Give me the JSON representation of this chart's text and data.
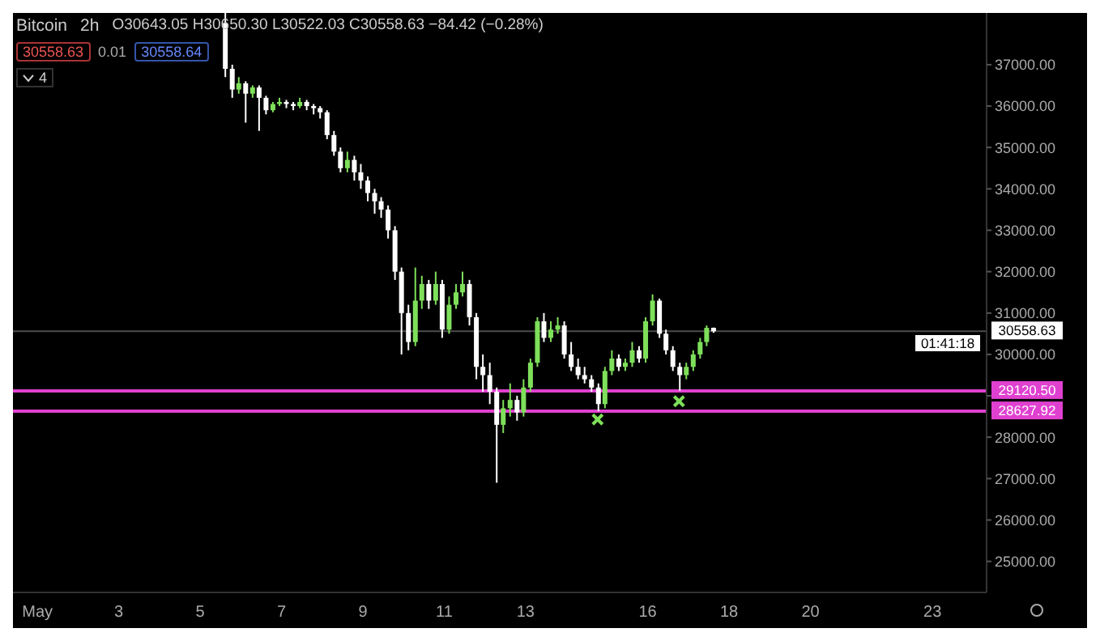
{
  "chart_data": {
    "type": "candlestick",
    "title": "Bitcoin",
    "annotations": [
      "2h",
      "O30643.05 H30650.30 L30522.03 C30558.63 −84.42 (−0.28%)",
      "30558.63",
      "0.01",
      "30558.64",
      "4",
      "01:41:18"
    ],
    "x": [
      5.6,
      5.77,
      5.93,
      6.1,
      6.27,
      6.43,
      6.6,
      6.77,
      6.93,
      7.1,
      7.27,
      7.43,
      7.6,
      7.77,
      7.93,
      8.1,
      8.27,
      8.43,
      8.6,
      8.77,
      8.93,
      9.1,
      9.27,
      9.43,
      9.6,
      9.77,
      9.93,
      10.1,
      10.27,
      10.43,
      10.6,
      10.77,
      10.93,
      11.1,
      11.27,
      11.43,
      11.6,
      11.77,
      11.93,
      12.1,
      12.27,
      12.43,
      12.6,
      12.77,
      12.93,
      13.1,
      13.27,
      13.43,
      13.6,
      13.77,
      13.93,
      14.1,
      14.27,
      14.43,
      14.6,
      14.77,
      14.93,
      15.1,
      15.27,
      15.43,
      15.6,
      15.77,
      15.93,
      16.1,
      16.27,
      16.43,
      16.6,
      16.77,
      16.93,
      17.1,
      17.27,
      17.43,
      17.6
    ],
    "ohlc": [
      [
        38000,
        38250,
        36700,
        36900
      ],
      [
        36900,
        37000,
        36200,
        36400
      ],
      [
        36400,
        36700,
        36300,
        36550
      ],
      [
        36550,
        36600,
        35600,
        36300
      ],
      [
        36300,
        36500,
        36200,
        36450
      ],
      [
        36450,
        36500,
        35400,
        36200
      ],
      [
        36200,
        36250,
        35800,
        35900
      ],
      [
        35900,
        36100,
        35850,
        36050
      ],
      [
        36050,
        36200,
        36000,
        36100
      ],
      [
        36100,
        36150,
        35950,
        36050
      ],
      [
        36050,
        36100,
        35900,
        36000
      ],
      [
        36000,
        36200,
        35950,
        36100
      ],
      [
        36100,
        36150,
        35900,
        36000
      ],
      [
        36000,
        36050,
        35800,
        35950
      ],
      [
        35950,
        36000,
        35700,
        35850
      ],
      [
        35850,
        35900,
        35200,
        35300
      ],
      [
        35300,
        35400,
        34800,
        34900
      ],
      [
        34900,
        35000,
        34400,
        34500
      ],
      [
        34500,
        34900,
        34400,
        34700
      ],
      [
        34700,
        34800,
        34200,
        34400
      ],
      [
        34400,
        34600,
        34000,
        34200
      ],
      [
        34200,
        34300,
        33700,
        33900
      ],
      [
        33900,
        34000,
        33400,
        33700
      ],
      [
        33700,
        33800,
        33300,
        33500
      ],
      [
        33500,
        33600,
        32800,
        33000
      ],
      [
        33000,
        33100,
        31800,
        32000
      ],
      [
        32000,
        32100,
        30000,
        31000
      ],
      [
        31000,
        31200,
        30100,
        30300
      ],
      [
        30300,
        32100,
        30200,
        31300
      ],
      [
        31300,
        31900,
        31100,
        31700
      ],
      [
        31700,
        31800,
        31100,
        31300
      ],
      [
        31300,
        32000,
        31200,
        31700
      ],
      [
        31700,
        31800,
        30400,
        30600
      ],
      [
        30600,
        31400,
        30500,
        31200
      ],
      [
        31200,
        31700,
        31100,
        31500
      ],
      [
        31500,
        32000,
        31400,
        31700
      ],
      [
        31700,
        31800,
        30700,
        30900
      ],
      [
        30900,
        31000,
        29400,
        29700
      ],
      [
        29700,
        30000,
        29100,
        29500
      ],
      [
        29500,
        29800,
        28800,
        29100
      ],
      [
        29100,
        29200,
        26900,
        28300
      ],
      [
        28300,
        28900,
        28100,
        28700
      ],
      [
        28700,
        29300,
        28500,
        28900
      ],
      [
        28900,
        29000,
        28400,
        28600
      ],
      [
        28600,
        29400,
        28500,
        29200
      ],
      [
        29200,
        29900,
        29100,
        29800
      ],
      [
        29800,
        30900,
        29700,
        30800
      ],
      [
        30800,
        31000,
        30300,
        30400
      ],
      [
        30400,
        30800,
        30300,
        30600
      ],
      [
        30600,
        30900,
        30500,
        30700
      ],
      [
        30700,
        30800,
        29900,
        30000
      ],
      [
        30000,
        30300,
        29600,
        29700
      ],
      [
        29700,
        29900,
        29400,
        29500
      ],
      [
        29500,
        29700,
        29300,
        29400
      ],
      [
        29400,
        29500,
        29100,
        29200
      ],
      [
        29200,
        29300,
        28627.92,
        28800
      ],
      [
        28800,
        29700,
        28700,
        29600
      ],
      [
        29600,
        30100,
        29500,
        29900
      ],
      [
        29900,
        30000,
        29600,
        29700
      ],
      [
        29700,
        29900,
        29600,
        29800
      ],
      [
        29800,
        30300,
        29700,
        30100
      ],
      [
        30100,
        30200,
        29800,
        29900
      ],
      [
        29900,
        30900,
        29800,
        30800
      ],
      [
        30800,
        31450,
        30700,
        31300
      ],
      [
        31300,
        31350,
        30400,
        30500
      ],
      [
        30500,
        30600,
        30000,
        30100
      ],
      [
        30100,
        30200,
        29600,
        29700
      ],
      [
        29700,
        29800,
        29120.5,
        29500
      ],
      [
        29500,
        29800,
        29400,
        29700
      ],
      [
        29700,
        30100,
        29600,
        30000
      ],
      [
        30000,
        30400,
        29900,
        30300
      ],
      [
        30300,
        30700,
        30200,
        30643.05
      ],
      [
        30643.05,
        30650.3,
        30522.03,
        30558.63
      ]
    ],
    "colors": [
      "#ffffff",
      "#ffffff",
      "#7ee05a",
      "#ffffff",
      "#7ee05a",
      "#ffffff",
      "#ffffff",
      "#7ee05a",
      "#7ee05a",
      "#ffffff",
      "#ffffff",
      "#7ee05a",
      "#ffffff",
      "#ffffff",
      "#ffffff",
      "#ffffff",
      "#ffffff",
      "#ffffff",
      "#7ee05a",
      "#ffffff",
      "#ffffff",
      "#ffffff",
      "#ffffff",
      "#ffffff",
      "#ffffff",
      "#ffffff",
      "#ffffff",
      "#ffffff",
      "#7ee05a",
      "#7ee05a",
      "#ffffff",
      "#7ee05a",
      "#ffffff",
      "#7ee05a",
      "#7ee05a",
      "#7ee05a",
      "#ffffff",
      "#ffffff",
      "#ffffff",
      "#ffffff",
      "#ffffff",
      "#7ee05a",
      "#7ee05a",
      "#ffffff",
      "#7ee05a",
      "#7ee05a",
      "#7ee05a",
      "#ffffff",
      "#7ee05a",
      "#7ee05a",
      "#ffffff",
      "#ffffff",
      "#ffffff",
      "#ffffff",
      "#ffffff",
      "#ffffff",
      "#7ee05a",
      "#7ee05a",
      "#ffffff",
      "#7ee05a",
      "#7ee05a",
      "#ffffff",
      "#7ee05a",
      "#7ee05a",
      "#ffffff",
      "#ffffff",
      "#ffffff",
      "#ffffff",
      "#7ee05a",
      "#7ee05a",
      "#7ee05a",
      "#7ee05a",
      "#ffffff"
    ],
    "series": [
      {
        "type": "scatter",
        "x": [
          14.77,
          16.77
        ],
        "values": [
          28430,
          28870
        ],
        "color": "#7ee05a",
        "marker": "cross"
      }
    ],
    "ref_lines": [
      {
        "axis": "y",
        "value": 30558.63,
        "label": "30558.63",
        "color": "#8a8a8a"
      },
      {
        "axis": "y",
        "value": 29120.5,
        "label": "29120.50",
        "color": "#e040d0"
      },
      {
        "axis": "y",
        "value": 28627.92,
        "label": "28627.92",
        "color": "#e040d0"
      }
    ],
    "xlim": [
      0.4,
      24.33
    ],
    "xticks": [
      {
        "value": 1,
        "label": "May"
      },
      3,
      5,
      7,
      9,
      11,
      13,
      16,
      18,
      20,
      23
    ],
    "ylim": [
      24250,
      38250
    ],
    "yticks": [
      {
        "value": 25000,
        "label": "25000.00"
      },
      {
        "value": 26000,
        "label": "26000.00"
      },
      {
        "value": 27000,
        "label": "27000.00"
      },
      {
        "value": 28000,
        "label": "28000.00"
      },
      {
        "value": 29000,
        "label": null
      },
      {
        "value": 30000,
        "label": "30000.00"
      },
      {
        "value": 31000,
        "label": "31000.00"
      },
      {
        "value": 32000,
        "label": "32000.00"
      },
      {
        "value": 33000,
        "label": "33000.00"
      },
      {
        "value": 34000,
        "label": "34000.00"
      },
      {
        "value": 35000,
        "label": "35000.00"
      },
      {
        "value": 36000,
        "label": "36000.00"
      },
      {
        "value": 37000,
        "label": "37000.00"
      }
    ],
    "grid": false
  }
}
